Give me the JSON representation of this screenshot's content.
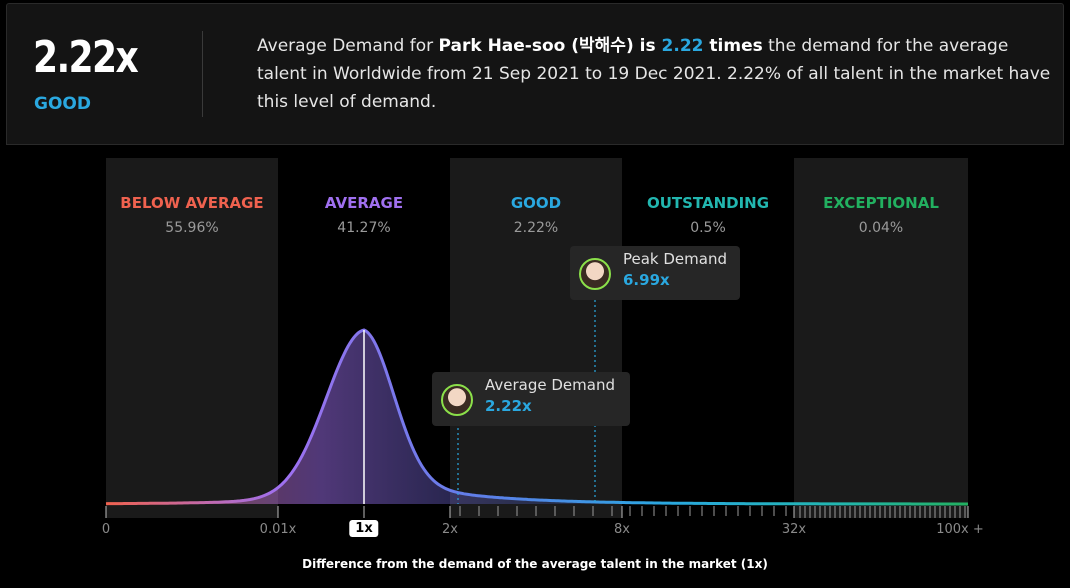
{
  "summary": {
    "value": "2.22x",
    "rating": "GOOD",
    "desc_prefix": "Average Demand for ",
    "talent_name": "Park Hae-soo (박해수)",
    "desc_is": " is ",
    "desc_value": "2.22",
    "desc_times": " times",
    "desc_suffix": " the demand for the average talent in Worldwide from 21 Sep 2021 to 19 Dec 2021. 2.22% of all talent in the market have this level of demand."
  },
  "colors": {
    "below_average": "#f0624f",
    "average": "#a070f0",
    "good": "#2aa8e0",
    "outstanding": "#22b7b0",
    "exceptional": "#22b060"
  },
  "chart_data": {
    "type": "area",
    "bands": [
      {
        "label": "BELOW AVERAGE",
        "percent": "55.96%"
      },
      {
        "label": "AVERAGE",
        "percent": "41.27%"
      },
      {
        "label": "GOOD",
        "percent": "2.22%"
      },
      {
        "label": "OUTSTANDING",
        "percent": "0.5%"
      },
      {
        "label": "EXCEPTIONAL",
        "percent": "0.04%"
      }
    ],
    "x_ticks": [
      "0",
      "0.01x",
      "1x",
      "2x",
      "8x",
      "32x",
      "100x +"
    ],
    "selected_tick": "1x",
    "xlabel": "Difference from the demand of the average talent in the market (1x)",
    "markers": [
      {
        "title": "Average Demand",
        "value": "2.22x",
        "x": 2.22
      },
      {
        "title": "Peak Demand",
        "value": "6.99x",
        "x": 6.99
      }
    ],
    "distribution_peak_x": 1
  }
}
